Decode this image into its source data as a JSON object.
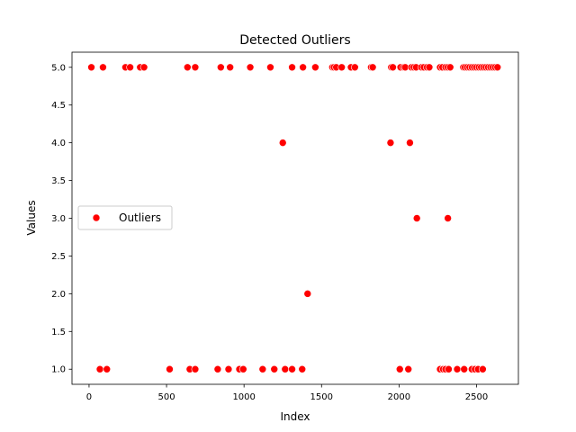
{
  "chart_data": {
    "type": "scatter",
    "title": "Detected Outliers",
    "xlabel": "Index",
    "ylabel": "Values",
    "xlim": [
      -110,
      2770
    ],
    "ylim": [
      0.8,
      5.2
    ],
    "xticks": [
      0,
      500,
      1000,
      1500,
      2000,
      2500
    ],
    "xtick_labels": [
      "0",
      "500",
      "1000",
      "1500",
      "2000",
      "2500"
    ],
    "yticks": [
      1.0,
      1.5,
      2.0,
      2.5,
      3.0,
      3.5,
      4.0,
      4.5,
      5.0
    ],
    "ytick_labels": [
      "1.0",
      "1.5",
      "2.0",
      "2.5",
      "3.0",
      "3.5",
      "4.0",
      "4.5",
      "5.0"
    ],
    "grid": false,
    "legend": {
      "position": "center-left",
      "entries": [
        "Outliers"
      ]
    },
    "series": [
      {
        "name": "Outliers",
        "color": "#ff0000",
        "points": [
          [
            15,
            5
          ],
          [
            90,
            5
          ],
          [
            235,
            5
          ],
          [
            265,
            5
          ],
          [
            330,
            5
          ],
          [
            355,
            5
          ],
          [
            635,
            5
          ],
          [
            685,
            5
          ],
          [
            850,
            5
          ],
          [
            910,
            5
          ],
          [
            1040,
            5
          ],
          [
            1170,
            5
          ],
          [
            1310,
            5
          ],
          [
            1380,
            5
          ],
          [
            1460,
            5
          ],
          [
            1570,
            5
          ],
          [
            1580,
            5
          ],
          [
            1595,
            5
          ],
          [
            1630,
            5
          ],
          [
            1690,
            5
          ],
          [
            1715,
            5
          ],
          [
            1820,
            5
          ],
          [
            1830,
            5
          ],
          [
            1950,
            5
          ],
          [
            1960,
            5
          ],
          [
            2010,
            5
          ],
          [
            2030,
            5
          ],
          [
            2040,
            5
          ],
          [
            2080,
            5
          ],
          [
            2095,
            5
          ],
          [
            2110,
            5
          ],
          [
            2145,
            5
          ],
          [
            2160,
            5
          ],
          [
            2180,
            5
          ],
          [
            2195,
            5
          ],
          [
            2265,
            5
          ],
          [
            2280,
            5
          ],
          [
            2300,
            5
          ],
          [
            2315,
            5
          ],
          [
            2330,
            5
          ],
          [
            2415,
            5
          ],
          [
            2425,
            5
          ],
          [
            2440,
            5
          ],
          [
            2455,
            5
          ],
          [
            2470,
            5
          ],
          [
            2485,
            5
          ],
          [
            2500,
            5
          ],
          [
            2515,
            5
          ],
          [
            2530,
            5
          ],
          [
            2545,
            5
          ],
          [
            2560,
            5
          ],
          [
            2575,
            5
          ],
          [
            2590,
            5
          ],
          [
            2605,
            5
          ],
          [
            2620,
            5
          ],
          [
            2635,
            5
          ],
          [
            1250,
            4
          ],
          [
            1945,
            4
          ],
          [
            2070,
            4
          ],
          [
            2115,
            3
          ],
          [
            2315,
            3
          ],
          [
            1410,
            2
          ],
          [
            70,
            1
          ],
          [
            115,
            1
          ],
          [
            520,
            1
          ],
          [
            650,
            1
          ],
          [
            685,
            1
          ],
          [
            830,
            1
          ],
          [
            900,
            1
          ],
          [
            970,
            1
          ],
          [
            995,
            1
          ],
          [
            1120,
            1
          ],
          [
            1195,
            1
          ],
          [
            1265,
            1
          ],
          [
            1310,
            1
          ],
          [
            1375,
            1
          ],
          [
            2005,
            1
          ],
          [
            2060,
            1
          ],
          [
            2265,
            1
          ],
          [
            2285,
            1
          ],
          [
            2300,
            1
          ],
          [
            2320,
            1
          ],
          [
            2375,
            1
          ],
          [
            2420,
            1
          ],
          [
            2470,
            1
          ],
          [
            2490,
            1
          ],
          [
            2510,
            1
          ],
          [
            2540,
            1
          ]
        ]
      }
    ]
  }
}
